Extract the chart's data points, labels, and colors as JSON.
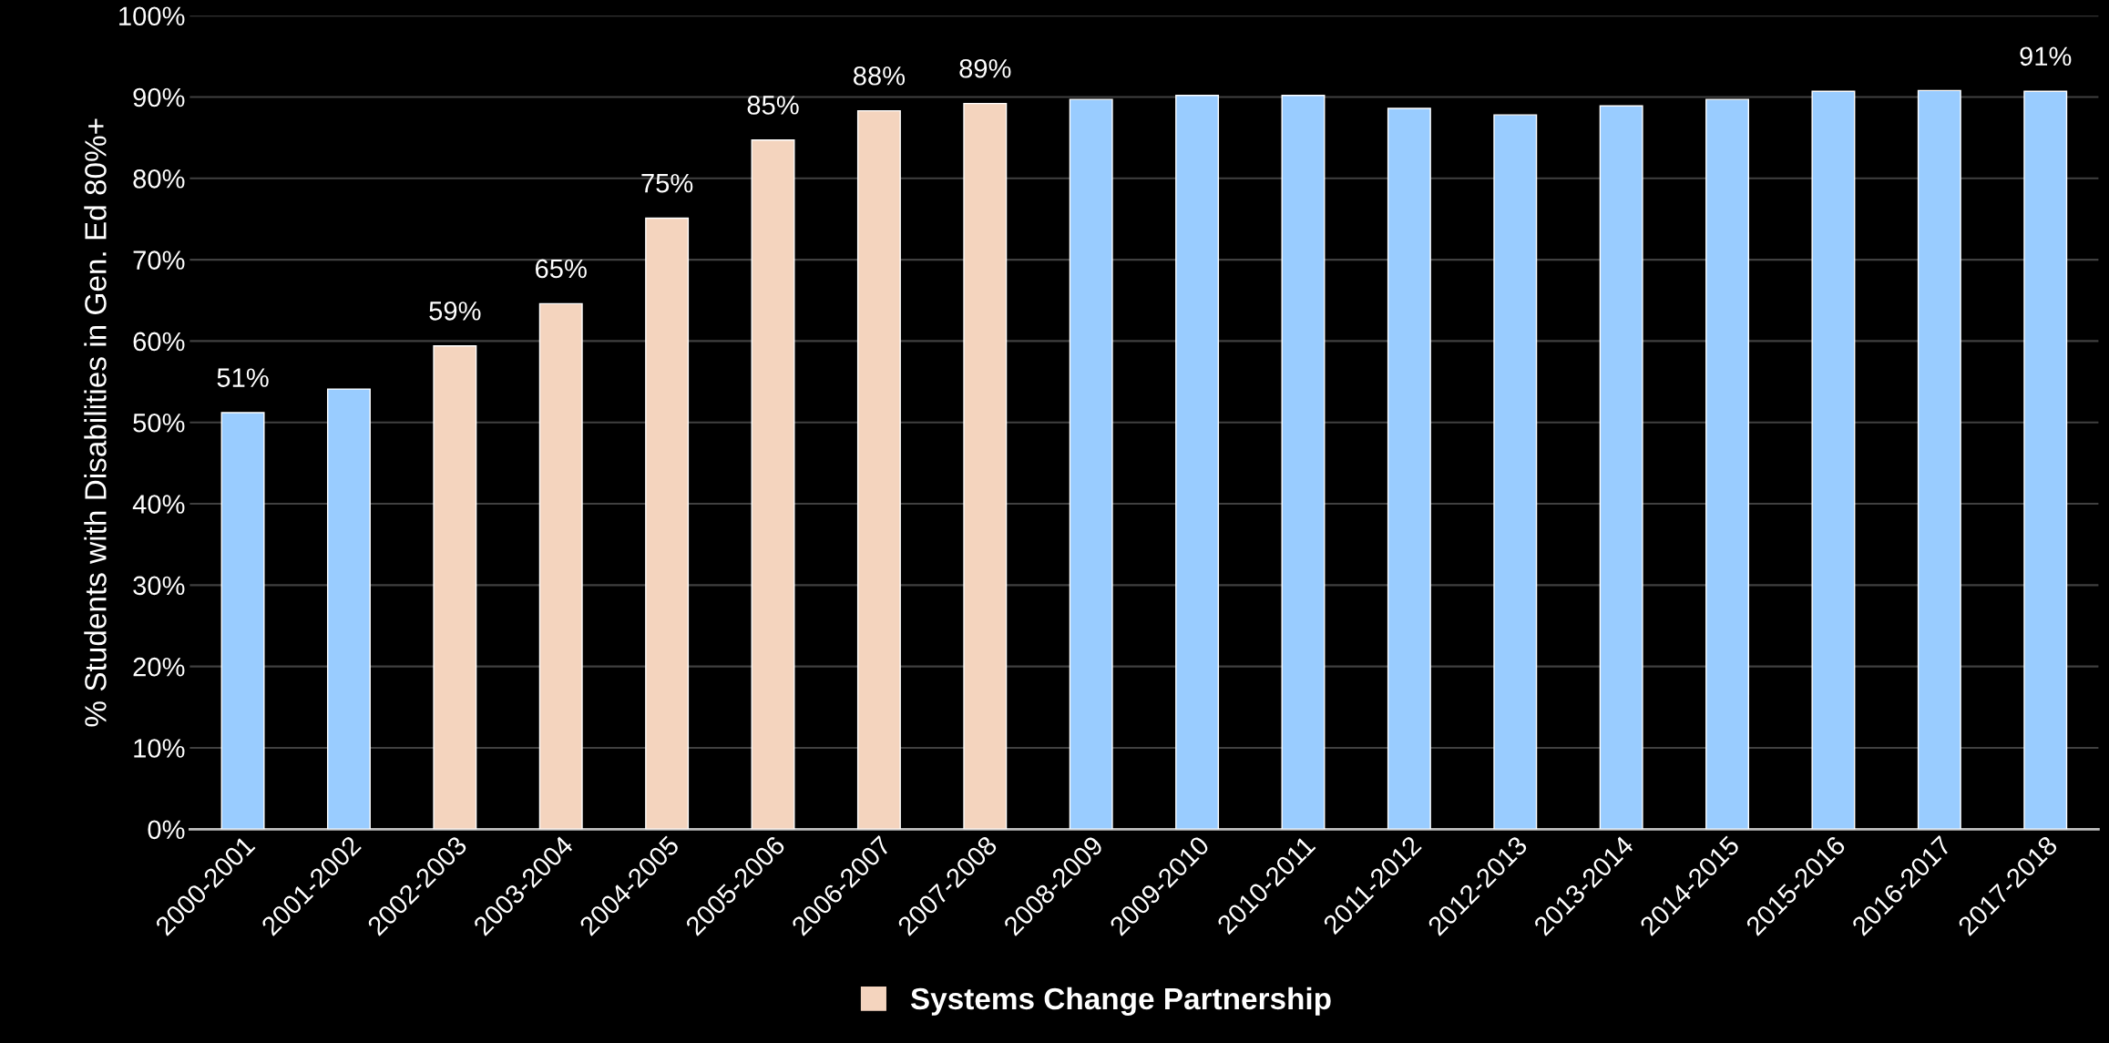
{
  "chart_data": {
    "type": "bar",
    "ylabel": "% Students with Disabilities in Gen. Ed 80%+",
    "categories": [
      "2000-2001",
      "2001-2002",
      "2002-2003",
      "2003-2004",
      "2004-2005",
      "2005-2006",
      "2006-2007",
      "2007-2008",
      "2008-2009",
      "2009-2010",
      "2010-2011",
      "2011-2012",
      "2012-2013",
      "2013-2014",
      "2014-2015",
      "2015-2016",
      "2016-2017",
      "2017-2018"
    ],
    "stacked": true,
    "series": [
      {
        "color": "#99ccff",
        "values": [
          51.2,
          54.1,
          null,
          null,
          null,
          null,
          null,
          null,
          89.7,
          90.2,
          90.2,
          88.6,
          87.8,
          88.9,
          89.7,
          90.7,
          90.8,
          90.7
        ],
        "value_labels": [
          "51%",
          null,
          null,
          null,
          null,
          null,
          null,
          null,
          null,
          null,
          null,
          null,
          null,
          null,
          null,
          null,
          null,
          "91%"
        ]
      },
      {
        "name": "Systems Change Partnership",
        "color": "#f4d4be",
        "values": [
          null,
          null,
          59.4,
          64.6,
          75.1,
          84.7,
          88.3,
          89.2,
          null,
          null,
          null,
          null,
          null,
          null,
          null,
          null,
          null,
          null
        ],
        "value_labels": [
          null,
          null,
          "59%",
          "65%",
          "75%",
          "85%",
          "88%",
          "89%",
          null,
          null,
          null,
          null,
          null,
          null,
          null,
          null,
          null,
          null
        ]
      }
    ],
    "ylim": [
      0,
      100
    ],
    "yticks": [
      {
        "value": 0,
        "label": "0%"
      },
      {
        "value": 10,
        "label": "10%"
      },
      {
        "value": 20,
        "label": "20%"
      },
      {
        "value": 30,
        "label": "30%"
      },
      {
        "value": 40,
        "label": "40%"
      },
      {
        "value": 50,
        "label": "50%"
      },
      {
        "value": 60,
        "label": "60%"
      },
      {
        "value": 70,
        "label": "70%"
      },
      {
        "value": 80,
        "label": "80%"
      },
      {
        "value": 90,
        "label": "90%"
      },
      {
        "value": 100,
        "label": "100%"
      }
    ],
    "grid": "y",
    "legend": "bottom"
  }
}
